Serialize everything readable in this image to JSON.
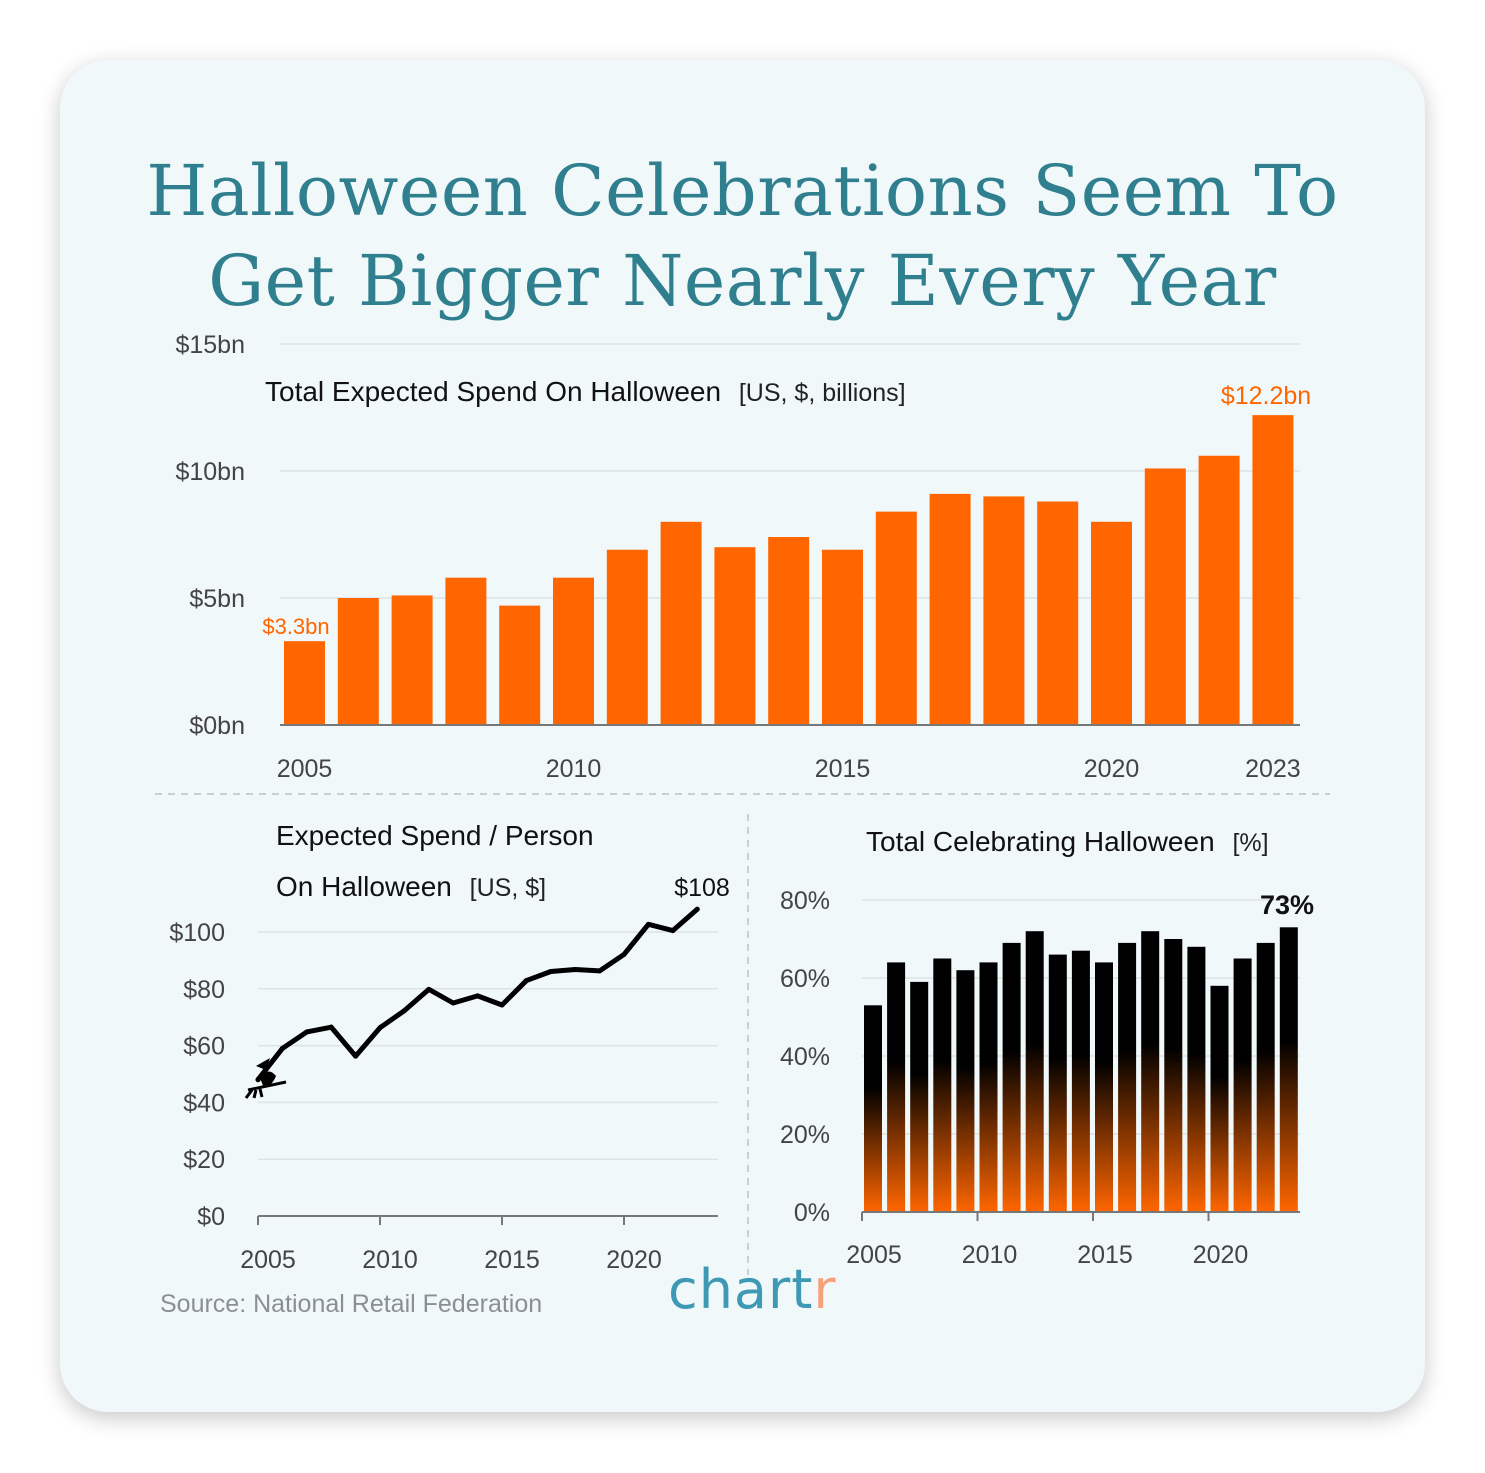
{
  "title": {
    "line1": "Halloween Celebrations Seem To",
    "line2": "Get Bigger Nearly Every Year"
  },
  "colors": {
    "title": "#2f7f8f",
    "orange": "#ff6600",
    "black": "#000000",
    "logo_blue": "#3e9ab4",
    "logo_peach": "#f5a27a"
  },
  "source": "Source: National Retail Federation",
  "logo": {
    "main": "chart",
    "accent": "r"
  },
  "chart_data": [
    {
      "type": "bar",
      "title": "Total Expected Spend On Halloween",
      "subtitle": "[US, $, billions]",
      "x": [
        2005,
        2006,
        2007,
        2008,
        2009,
        2010,
        2011,
        2012,
        2013,
        2014,
        2015,
        2016,
        2017,
        2018,
        2019,
        2020,
        2021,
        2022,
        2023
      ],
      "values": [
        3.3,
        5.0,
        5.1,
        5.8,
        4.7,
        5.8,
        6.9,
        8.0,
        7.0,
        7.4,
        6.9,
        8.4,
        9.1,
        9.0,
        8.8,
        8.0,
        10.1,
        10.6,
        12.2
      ],
      "ylim": [
        0,
        15
      ],
      "yticks": [
        "$0bn",
        "$5bn",
        "$10bn",
        "$15bn"
      ],
      "xticks": [
        "2005",
        "2010",
        "2015",
        "2020",
        "2023"
      ],
      "annotations": {
        "first": "$3.3bn",
        "last": "$12.2bn"
      },
      "color": "#ff6600",
      "grid": true
    },
    {
      "type": "line",
      "title_line1": "Expected Spend / Person",
      "title_line2": "On Halloween",
      "subtitle": "[US, $]",
      "x": [
        2005,
        2006,
        2007,
        2008,
        2009,
        2010,
        2011,
        2012,
        2013,
        2014,
        2015,
        2016,
        2017,
        2018,
        2019,
        2020,
        2021,
        2022,
        2023
      ],
      "values": [
        48,
        59,
        64.8,
        66.5,
        56.3,
        66.3,
        72.3,
        79.8,
        75,
        77.5,
        74.3,
        82.9,
        86.1,
        86.8,
        86.3,
        92.1,
        102.7,
        100.5,
        108
      ],
      "ylim": [
        0,
        120
      ],
      "yticks": [
        "$0",
        "$20",
        "$40",
        "$60",
        "$80",
        "$100"
      ],
      "xticks": [
        "2005",
        "2010",
        "2015",
        "2020"
      ],
      "annotations": {
        "last": "$108"
      },
      "color": "#000000",
      "grid": true
    },
    {
      "type": "bar",
      "title": "Total Celebrating Halloween",
      "subtitle": "[%]",
      "x": [
        2005,
        2006,
        2007,
        2008,
        2009,
        2010,
        2011,
        2012,
        2013,
        2014,
        2015,
        2016,
        2017,
        2018,
        2019,
        2020,
        2021,
        2022,
        2023
      ],
      "values": [
        53,
        64,
        59,
        65,
        62,
        64,
        69,
        72,
        66,
        67,
        64,
        69,
        72,
        70,
        68,
        58,
        65,
        69,
        73
      ],
      "ylim": [
        0,
        80
      ],
      "yticks": [
        "0%",
        "20%",
        "40%",
        "60%",
        "80%"
      ],
      "xticks": [
        "2005",
        "2010",
        "2015",
        "2020"
      ],
      "annotations": {
        "last": "73%"
      },
      "gradient": [
        "#000000",
        "#ff6600"
      ],
      "grid": true
    }
  ]
}
